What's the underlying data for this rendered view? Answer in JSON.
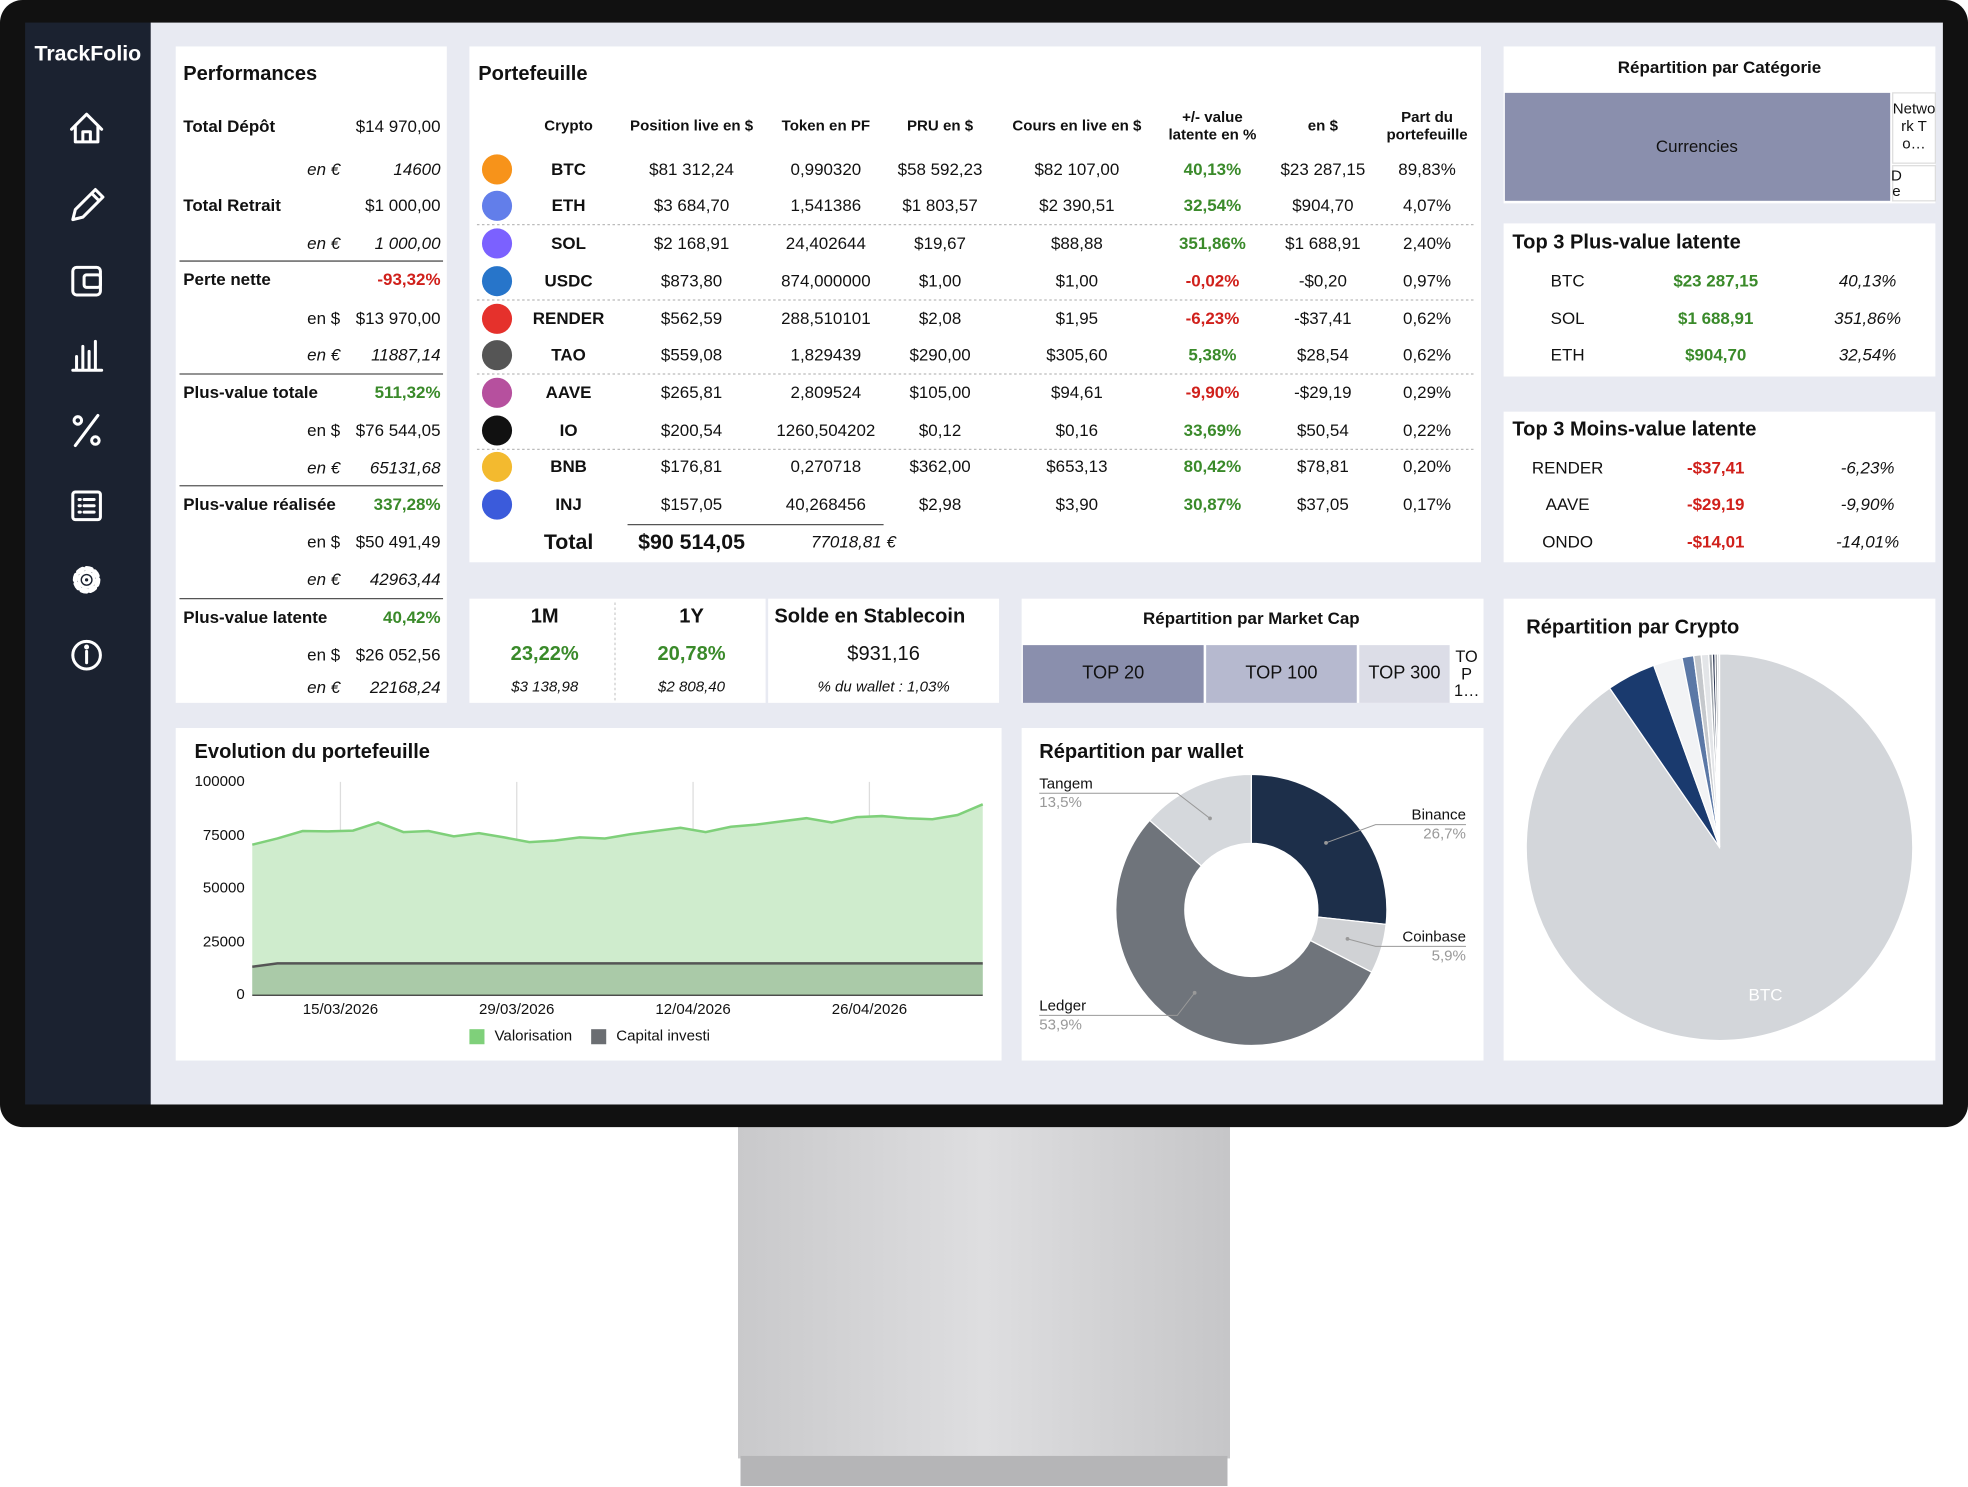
{
  "sidebar": {
    "logo": "TrackFolio"
  },
  "performances": {
    "title": "Performances",
    "groups": [
      {
        "label": "Total Dépôt",
        "value": "$14 970,00",
        "subs": [
          {
            "label": "en €",
            "value": "14600"
          }
        ]
      },
      {
        "label": "Total Retrait",
        "value": "$1 000,00",
        "subs": [
          {
            "label": "en €",
            "value": "1 000,00"
          }
        ]
      },
      {
        "label": "Perte nette",
        "value": "-93,32%",
        "color": "#d0201b",
        "subs": [
          {
            "label": "en $",
            "value": "$13 970,00"
          },
          {
            "label": "en €",
            "value": "11887,14"
          }
        ]
      },
      {
        "label": "Plus-value totale",
        "value": "511,32%",
        "color": "#3a8a2a",
        "subs": [
          {
            "label": "en $",
            "value": "$76 544,05"
          },
          {
            "label": "en €",
            "value": "65131,68"
          }
        ]
      },
      {
        "label": "Plus-value réalisée",
        "value": "337,28%",
        "color": "#3a8a2a",
        "subs": [
          {
            "label": "en $",
            "value": "$50 491,49"
          },
          {
            "label": "en €",
            "value": "42963,44"
          }
        ]
      },
      {
        "label": "Plus-value latente",
        "value": "40,42%",
        "color": "#3a8a2a",
        "subs": [
          {
            "label": "en $",
            "value": "$26 052,56"
          },
          {
            "label": "en €",
            "value": "22168,24"
          }
        ]
      }
    ]
  },
  "portfolio": {
    "title": "Portefeuille",
    "headers": [
      "Crypto",
      "Position live en $",
      "Token en PF",
      "PRU en $",
      "Cours en live en $",
      "+/- value latente en %",
      "en $",
      "Part du portefeuille"
    ],
    "rows": [
      [
        "BTC",
        "$81 312,24",
        "0,990320",
        "$58 592,23",
        "$82 107,00",
        "40,13%",
        "$23 287,15",
        "89,83%"
      ],
      [
        "ETH",
        "$3 684,70",
        "1,541386",
        "$1 803,57",
        "$2 390,51",
        "32,54%",
        "$904,70",
        "4,07%"
      ],
      [
        "SOL",
        "$2 168,91",
        "24,402644",
        "$19,67",
        "$88,88",
        "351,86%",
        "$1 688,91",
        "2,40%"
      ],
      [
        "USDC",
        "$873,80",
        "874,000000",
        "$1,00",
        "$1,00",
        "-0,02%",
        "-$0,20",
        "0,97%"
      ],
      [
        "RENDER",
        "$562,59",
        "288,510101",
        "$2,08",
        "$1,95",
        "-6,23%",
        "-$37,41",
        "0,62%"
      ],
      [
        "TAO",
        "$559,08",
        "1,829439",
        "$290,00",
        "$305,60",
        "5,38%",
        "$28,54",
        "0,62%"
      ],
      [
        "AAVE",
        "$265,81",
        "2,809524",
        "$105,00",
        "$94,61",
        "-9,90%",
        "-$29,19",
        "0,29%"
      ],
      [
        "IO",
        "$200,54",
        "1260,504202",
        "$0,12",
        "$0,16",
        "33,69%",
        "$50,54",
        "0,22%"
      ],
      [
        "BNB",
        "$176,81",
        "0,270718",
        "$362,00",
        "$653,13",
        "80,42%",
        "$78,81",
        "0,20%"
      ],
      [
        "INJ",
        "$157,05",
        "40,268456",
        "$2,98",
        "$3,90",
        "30,87%",
        "$37,05",
        "0,17%"
      ]
    ],
    "total": {
      "label": "Total",
      "usd": "$90 514,05",
      "eur": "77018,81 €"
    }
  },
  "category": {
    "title": "Répartition par Catégorie",
    "cells": [
      "Currencies",
      "Network To…",
      "De"
    ]
  },
  "top_gain": {
    "title": "Top 3 Plus-value latente",
    "rows": [
      [
        "BTC",
        "$23 287,15",
        "40,13%"
      ],
      [
        "SOL",
        "$1 688,91",
        "351,86%"
      ],
      [
        "ETH",
        "$904,70",
        "32,54%"
      ]
    ]
  },
  "top_loss": {
    "title": "Top 3 Moins-value latente",
    "rows": [
      [
        "RENDER",
        "-$37,41",
        "-6,23%"
      ],
      [
        "AAVE",
        "-$29,19",
        "-9,90%"
      ],
      [
        "ONDO",
        "-$14,01",
        "-14,01%"
      ]
    ]
  },
  "returns": [
    {
      "period": "1M",
      "pct": "23,22%",
      "usd": "$3 138,98"
    },
    {
      "period": "1Y",
      "pct": "20,78%",
      "usd": "$2 808,40"
    }
  ],
  "stablecoin": {
    "title": "Solde en Stablecoin",
    "value": "$931,16",
    "note": "% du wallet : 1,03%"
  },
  "market_cap": {
    "title": "Répartition par Market Cap",
    "cells": [
      "TOP 20",
      "TOP 100",
      "TOP 300",
      "TOP 1…"
    ]
  },
  "chart_data": [
    {
      "type": "line",
      "title": "Evolution du portefeuille",
      "x": [
        "2026-03-08",
        "2026-03-10",
        "2026-03-12",
        "2026-03-14",
        "2026-03-16",
        "2026-03-18",
        "2026-03-20",
        "2026-03-22",
        "2026-03-24",
        "2026-03-26",
        "2026-03-28",
        "2026-03-30",
        "2026-04-01",
        "2026-04-03",
        "2026-04-05",
        "2026-04-07",
        "2026-04-09",
        "2026-04-11",
        "2026-04-13",
        "2026-04-15",
        "2026-04-17",
        "2026-04-19",
        "2026-04-21",
        "2026-04-23",
        "2026-04-25",
        "2026-04-27",
        "2026-04-29",
        "2026-05-01",
        "2026-05-03",
        "2026-05-05"
      ],
      "series": [
        {
          "name": "Valorisation",
          "color": "#7fd07a",
          "values": [
            70600,
            73500,
            77000,
            76800,
            77200,
            81000,
            76500,
            77000,
            74500,
            76000,
            74000,
            71800,
            72500,
            74000,
            73500,
            75500,
            77000,
            78500,
            76500,
            79000,
            80000,
            81500,
            83000,
            81000,
            83500,
            84000,
            83000,
            82500,
            84500,
            89500
          ]
        },
        {
          "name": "Capital investi",
          "color": "#6b6e72",
          "values": [
            13400,
            14970,
            14970,
            14970,
            14970,
            14970,
            14970,
            14970,
            14970,
            14970,
            14970,
            14970,
            14970,
            14970,
            14970,
            14970,
            14970,
            14970,
            14970,
            14970,
            14970,
            14970,
            14970,
            14970,
            14970,
            14970,
            14970,
            14970,
            14970,
            14970
          ]
        }
      ],
      "xlim": [
        "2026-03-08",
        "2026-05-05"
      ],
      "xticks": [
        {
          "value": "2026-03-15",
          "label": "15/03/2026"
        },
        {
          "value": "2026-03-29",
          "label": "29/03/2026"
        },
        {
          "value": "2026-04-12",
          "label": "12/04/2026"
        },
        {
          "value": "2026-04-26",
          "label": "26/04/2026"
        }
      ],
      "ylim": [
        0,
        100000
      ],
      "yticks": [
        0,
        25000,
        50000,
        75000,
        100000
      ],
      "grid": true
    },
    {
      "type": "donut",
      "title": "Répartition par wallet",
      "categories": [
        "Binance",
        "Coinbase",
        "Ledger",
        "Tangem"
      ],
      "values": [
        26.7,
        5.9,
        53.9,
        13.5
      ],
      "value_labels": [
        "26,7%",
        "5,9%",
        "53,9%",
        "13,5%"
      ],
      "colors": [
        "#1d2f4a",
        "#d0d2d5",
        "#6f747b",
        "#d5d8dc"
      ]
    },
    {
      "type": "pie",
      "title": "Répartition par Crypto",
      "categories": [
        "BTC",
        null,
        null,
        null,
        null,
        null,
        null,
        null,
        null,
        null
      ],
      "values": [
        89.83,
        4.07,
        2.4,
        0.97,
        0.62,
        0.62,
        0.29,
        0.22,
        0.2,
        0.17
      ],
      "colors": [
        "#d3d6da",
        "#1a3a6e",
        "#f2f3f5",
        "#5b78a6",
        "#c5c8cc",
        "#e3e5e8",
        "#9ea4ab",
        "#2a3550",
        "#8a8f96",
        "#dfe2e6"
      ]
    }
  ]
}
